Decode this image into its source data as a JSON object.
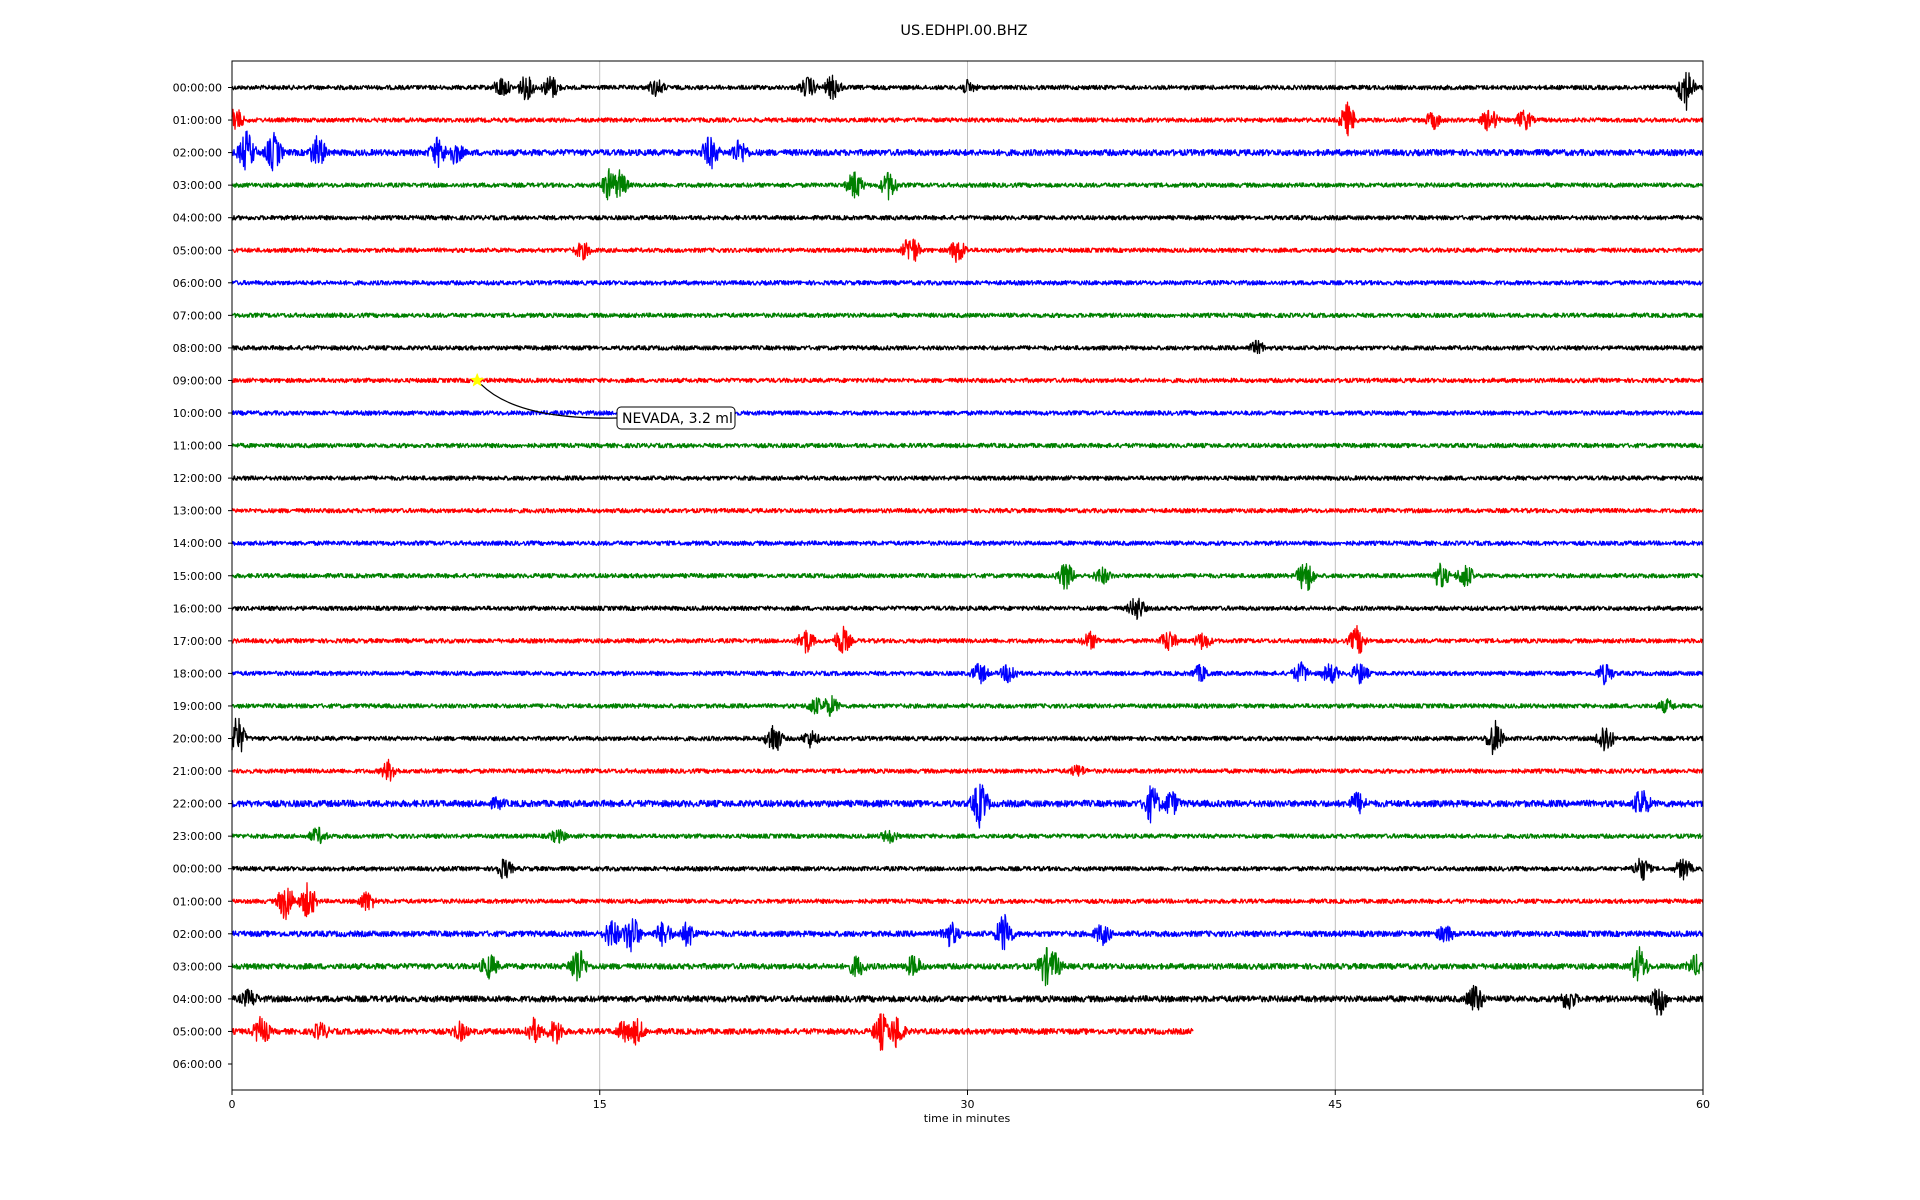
{
  "chart_data": {
    "type": "line",
    "title": "US.EDHPI.00.BHZ",
    "xlabel": "time in minutes",
    "ylabel": "",
    "xlim": [
      0,
      60
    ],
    "x_ticks": [
      "0",
      "15",
      "30",
      "45",
      "60"
    ],
    "grid": "vertical",
    "row_labels": [
      "00:00:00",
      "01:00:00",
      "02:00:00",
      "03:00:00",
      "04:00:00",
      "05:00:00",
      "06:00:00",
      "07:00:00",
      "08:00:00",
      "09:00:00",
      "10:00:00",
      "11:00:00",
      "12:00:00",
      "13:00:00",
      "14:00:00",
      "15:00:00",
      "16:00:00",
      "17:00:00",
      "18:00:00",
      "19:00:00",
      "20:00:00",
      "21:00:00",
      "22:00:00",
      "23:00:00",
      "00:00:00",
      "01:00:00",
      "02:00:00",
      "03:00:00",
      "04:00:00",
      "05:00:00",
      "06:00:00"
    ],
    "colors": [
      "#000000",
      "#ff0000",
      "#0000ff",
      "#008000"
    ],
    "last_trace_end_minute": 39.2,
    "event_marker": {
      "row": 9,
      "minute": 10,
      "marker": "star",
      "color": "#ffff00"
    },
    "annotation": "NEVADA, 3.2 ml"
  }
}
